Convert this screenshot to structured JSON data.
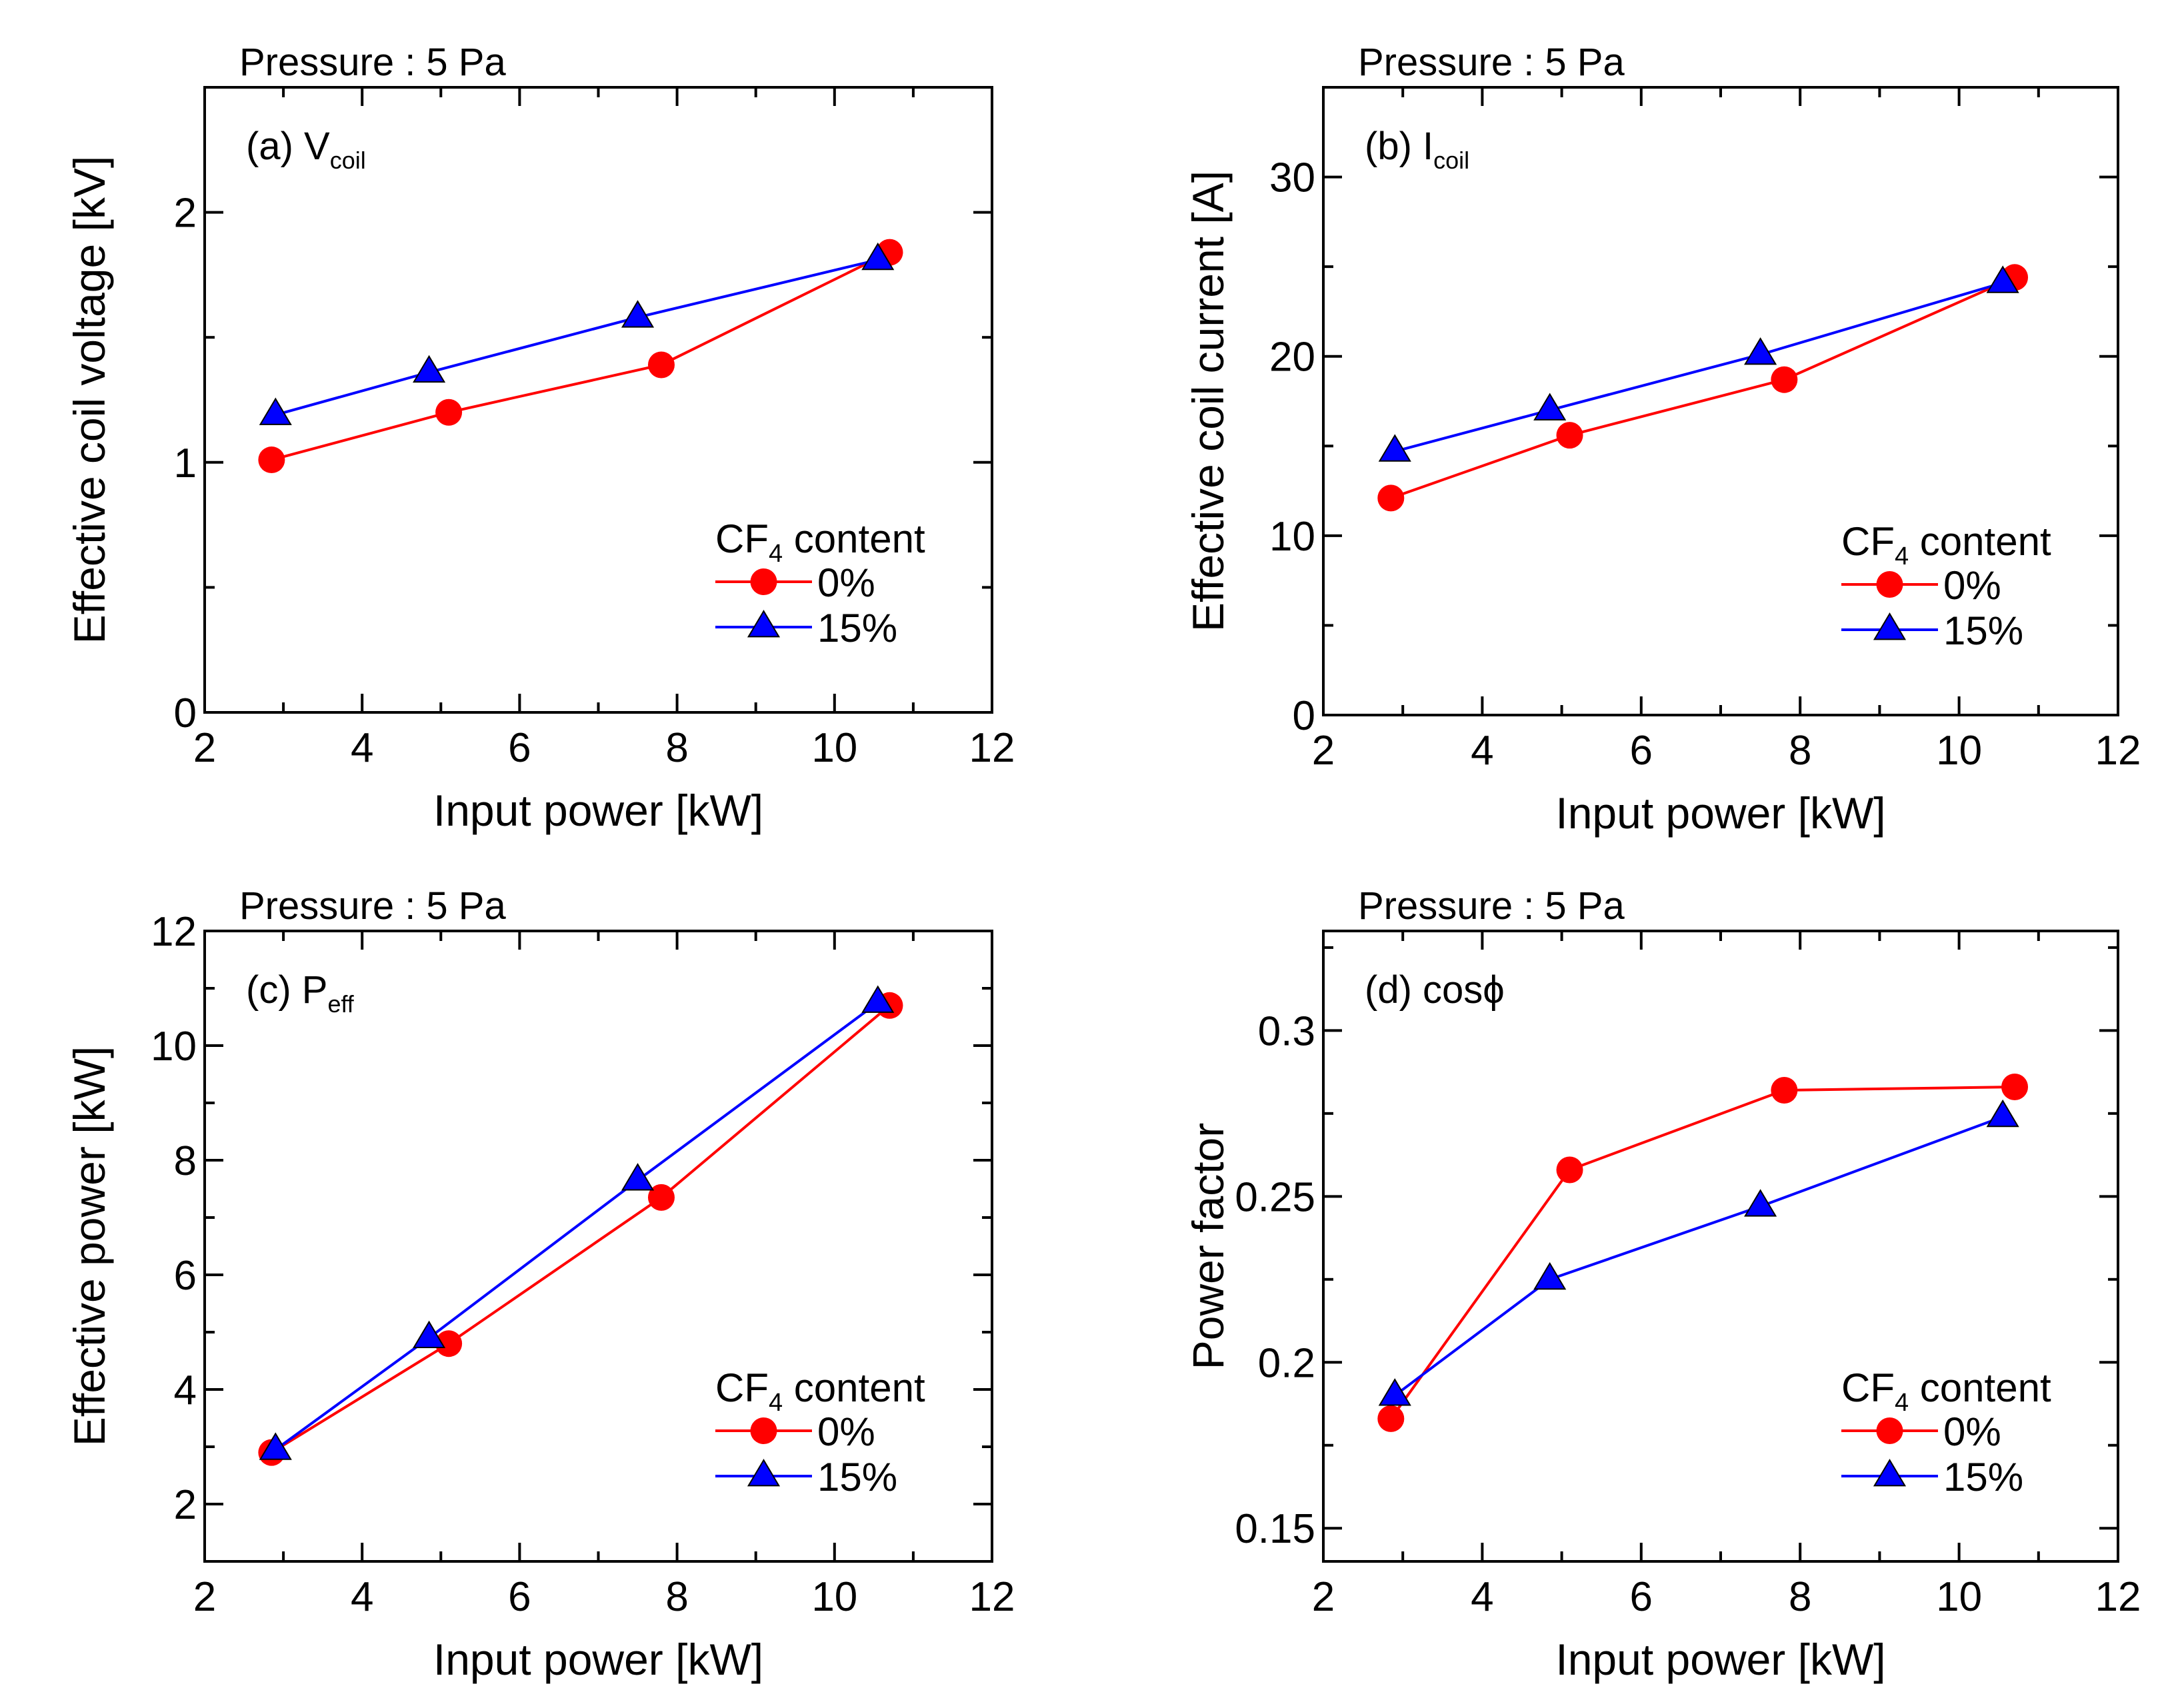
{
  "chart_data": [
    {
      "type": "line",
      "panel_label": "(a) V",
      "panel_sub": "coil",
      "pressure_label": "Pressure : 5 Pa",
      "xlabel": "Input power [kW]",
      "ylabel": "Effective coil voltage [kV]",
      "xlim": [
        2,
        12
      ],
      "ylim": [
        0,
        2.5
      ],
      "xticks": [
        2,
        4,
        6,
        8,
        10,
        12
      ],
      "xtick_labels": [
        "2",
        "4",
        "6",
        "8",
        "10",
        "12"
      ],
      "yticks": [
        0,
        1,
        2
      ],
      "ytick_labels": [
        "0",
        "1",
        "2"
      ],
      "yminor": [
        0.5,
        1.5
      ],
      "legend_title": "CF",
      "legend_title_sub": "4",
      "legend_title_tail": " content",
      "legend_position": "lower-right",
      "series": [
        {
          "name": "0%",
          "color": "#ff0000",
          "marker": "circle",
          "x": [
            2.85,
            5.1,
            7.8,
            10.7
          ],
          "y": [
            1.01,
            1.2,
            1.39,
            1.84
          ]
        },
        {
          "name": "15%",
          "color": "#0000ff",
          "marker": "triangle",
          "x": [
            2.9,
            4.85,
            7.5,
            10.55
          ],
          "y": [
            1.19,
            1.36,
            1.58,
            1.81
          ]
        }
      ]
    },
    {
      "type": "line",
      "panel_label": "(b) I",
      "panel_sub": "coil",
      "pressure_label": "Pressure : 5 Pa",
      "xlabel": "Input power [kW]",
      "ylabel": "Effective coil current [A]",
      "xlim": [
        2,
        12
      ],
      "ylim": [
        0,
        35
      ],
      "xticks": [
        2,
        4,
        6,
        8,
        10,
        12
      ],
      "xtick_labels": [
        "2",
        "4",
        "6",
        "8",
        "10",
        "12"
      ],
      "yticks": [
        0,
        10,
        20,
        30
      ],
      "ytick_labels": [
        "0",
        "10",
        "20",
        "30"
      ],
      "yminor": [
        5,
        15,
        25
      ],
      "legend_title": "CF",
      "legend_title_sub": "4",
      "legend_title_tail": " content",
      "legend_position": "lower-right",
      "series": [
        {
          "name": "0%",
          "color": "#ff0000",
          "marker": "circle",
          "x": [
            2.85,
            5.1,
            7.8,
            10.7
          ],
          "y": [
            12.1,
            15.6,
            18.7,
            24.4
          ]
        },
        {
          "name": "15%",
          "color": "#0000ff",
          "marker": "triangle",
          "x": [
            2.9,
            4.85,
            7.5,
            10.55
          ],
          "y": [
            14.7,
            17.0,
            20.1,
            24.1
          ]
        }
      ]
    },
    {
      "type": "line",
      "panel_label": "(c) P",
      "panel_sub": "eff",
      "pressure_label": "Pressure : 5 Pa",
      "xlabel": "Input power [kW]",
      "ylabel": "Effective power [kW]",
      "xlim": [
        2,
        12
      ],
      "ylim": [
        1,
        12
      ],
      "xticks": [
        2,
        4,
        6,
        8,
        10,
        12
      ],
      "xtick_labels": [
        "2",
        "4",
        "6",
        "8",
        "10",
        "12"
      ],
      "yticks": [
        2,
        4,
        6,
        8,
        10,
        12
      ],
      "ytick_labels": [
        "2",
        "4",
        "6",
        "8",
        "10",
        "12"
      ],
      "yminor": [
        3,
        5,
        7,
        9,
        11
      ],
      "legend_title": "CF",
      "legend_title_sub": "4",
      "legend_title_tail": " content",
      "legend_position": "lower-right",
      "series": [
        {
          "name": "0%",
          "color": "#ff0000",
          "marker": "circle",
          "x": [
            2.85,
            5.1,
            7.8,
            10.7
          ],
          "y": [
            2.9,
            4.8,
            7.35,
            10.7
          ]
        },
        {
          "name": "15%",
          "color": "#0000ff",
          "marker": "triangle",
          "x": [
            2.9,
            4.85,
            7.5,
            10.55
          ],
          "y": [
            2.95,
            4.9,
            7.65,
            10.75
          ]
        }
      ]
    },
    {
      "type": "line",
      "panel_label": "(d) cosϕ",
      "panel_sub": "",
      "pressure_label": "Pressure : 5 Pa",
      "xlabel": "Input power [kW]",
      "ylabel": "Power factor",
      "xlim": [
        2,
        12
      ],
      "ylim": [
        0.14,
        0.33
      ],
      "xticks": [
        2,
        4,
        6,
        8,
        10,
        12
      ],
      "xtick_labels": [
        "2",
        "4",
        "6",
        "8",
        "10",
        "12"
      ],
      "yticks": [
        0.15,
        0.2,
        0.25,
        0.3
      ],
      "ytick_labels": [
        "0.15",
        "0.2",
        "0.25",
        "0.3"
      ],
      "yminor": [
        0.175,
        0.225,
        0.275,
        0.325
      ],
      "legend_title": "CF",
      "legend_title_sub": "4",
      "legend_title_tail": " content",
      "legend_position": "lower-right",
      "series": [
        {
          "name": "0%",
          "color": "#ff0000",
          "marker": "circle",
          "x": [
            2.85,
            5.1,
            7.8,
            10.7
          ],
          "y": [
            0.183,
            0.258,
            0.282,
            0.283
          ]
        },
        {
          "name": "15%",
          "color": "#0000ff",
          "marker": "triangle",
          "x": [
            2.9,
            4.85,
            7.5,
            10.55
          ],
          "y": [
            0.19,
            0.225,
            0.247,
            0.274
          ]
        }
      ]
    }
  ]
}
